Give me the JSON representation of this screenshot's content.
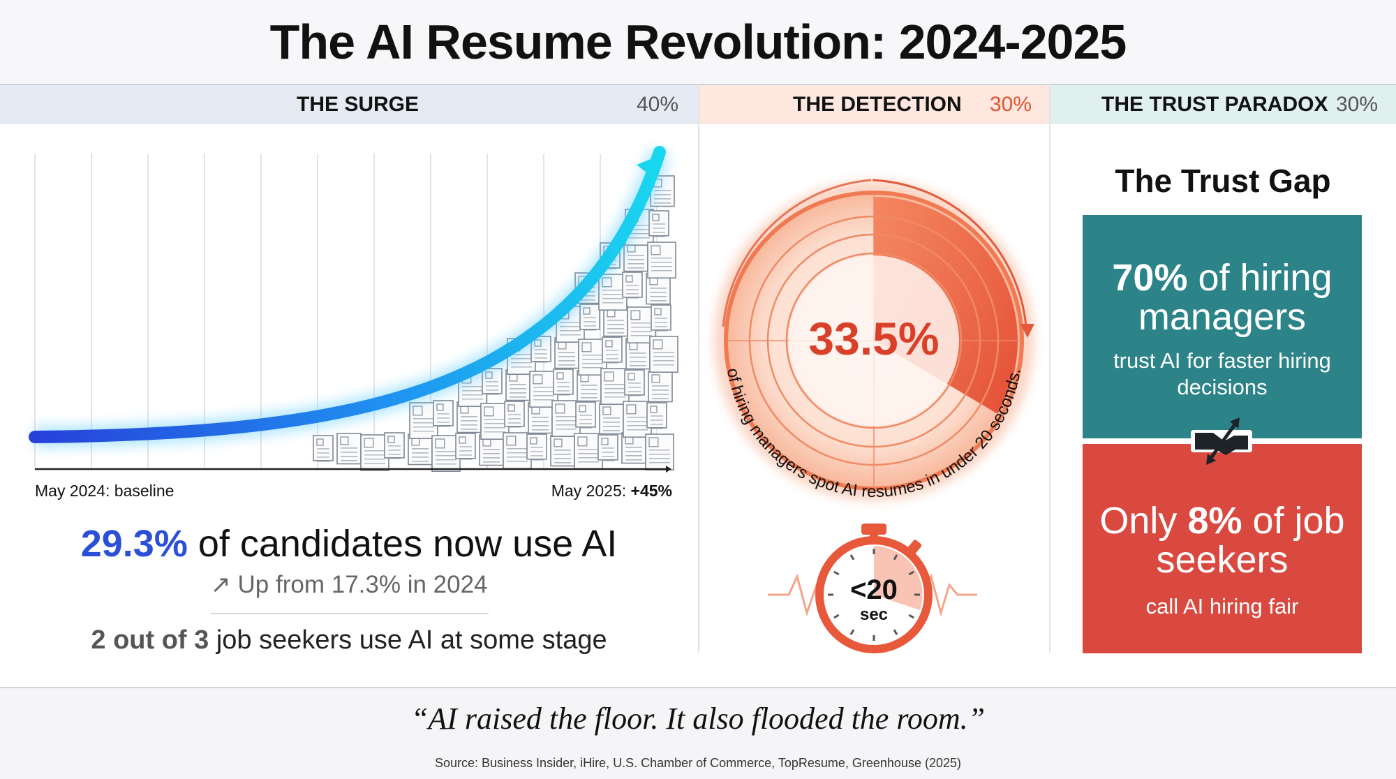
{
  "title": "The AI Resume Revolution: 2024-2025",
  "sections": {
    "surge": {
      "label": "THE SURGE",
      "percent": "40%"
    },
    "detection": {
      "label": "THE DETECTION",
      "percent": "30%"
    },
    "trust": {
      "label": "THE TRUST PARADOX",
      "percent": "30%"
    }
  },
  "surge": {
    "axis_start": "May 2024: baseline",
    "axis_end_prefix": "May 2025: ",
    "axis_end_value": "+45%",
    "headline_value": "29.3%",
    "headline_text": " of candidates now use AI",
    "subline": "↗ Up from 17.3% in 2024",
    "footline_bold": "2 out of 3",
    "footline_text": " job seekers use AI at some stage"
  },
  "detection": {
    "value": "33.5%",
    "value_fraction": 0.335,
    "arc_text": "of hiring managers spot AI resumes in under 20 seconds.",
    "timer_value": "<20",
    "timer_unit": "sec"
  },
  "trust": {
    "title": "The Trust Gap",
    "top_value": "70%",
    "top_text": " of hiring managers",
    "top_sub": "trust AI for faster hiring decisions",
    "bottom_prefix": "Only ",
    "bottom_value": "8%",
    "bottom_text": " of job seekers",
    "bottom_sub": "call AI hiring fair"
  },
  "quote": "“AI raised the floor. It also flooded the room.”",
  "source": "Source: Business Insider, iHire, U.S. Chamber of Commerce, TopResume, Greenhouse (2025)",
  "colors": {
    "accent_blue": "#2b4fd8",
    "detect_orange": "#e0542f",
    "trust_teal": "#2c8489",
    "trust_red": "#d9493f"
  }
}
